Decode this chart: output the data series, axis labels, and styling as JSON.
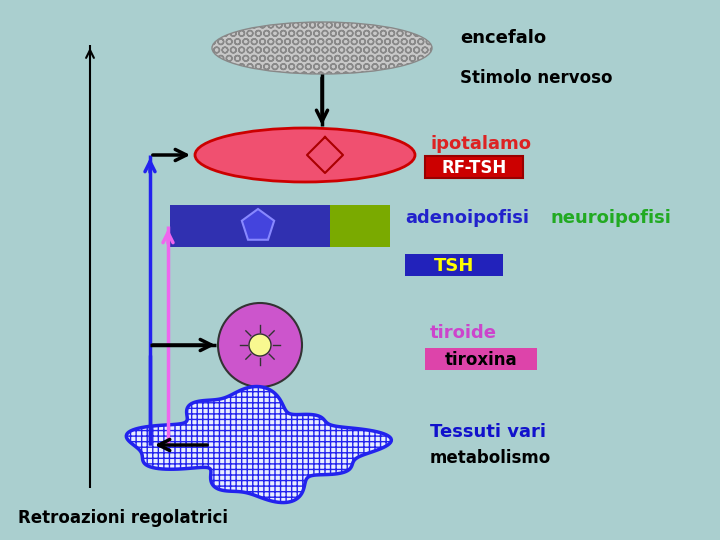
{
  "bg_color": "#aacfcf",
  "encefalo_label": "encefalo",
  "stimolo_label": "Stimolo nervoso",
  "ipotalamo_label": "ipotalamo",
  "rftsh_label": "RF-TSH",
  "adenoipofisi_label": "adenoipofisi",
  "neuroipofisi_label": "neuroipofisi",
  "tsh_label": "TSH",
  "tiroide_label": "tiroide",
  "tiroxina_label": "tiroxina",
  "tessuti_label": "Tessuti vari",
  "metabolismo_label": "metabolismo",
  "retroazioni_label": "Retroazioni regolatrici",
  "ipotalamo_color": "#f05070",
  "adenoipofisi_color": "#3030b0",
  "adenoipofisi_green": "#7aaa00",
  "tiroide_color": "#cc55cc",
  "tessuti_fill": "#e8eeff",
  "rftsh_bg": "#cc0000",
  "tsh_bg": "#2222bb",
  "tiroxina_bg": "#dd44aa",
  "encefalo_fill": "#c8c8c8",
  "label_ipotalamo_color": "#dd2222",
  "label_adenoipofisi_color": "#2222cc",
  "label_neuroipofisi_color": "#22aa22",
  "label_tiroide_color": "#cc44cc",
  "label_tessuti_color": "#1111cc",
  "blue_line_color": "#2222ee",
  "magenta_line_color": "#ee66ee",
  "black_line_color": "#000000"
}
